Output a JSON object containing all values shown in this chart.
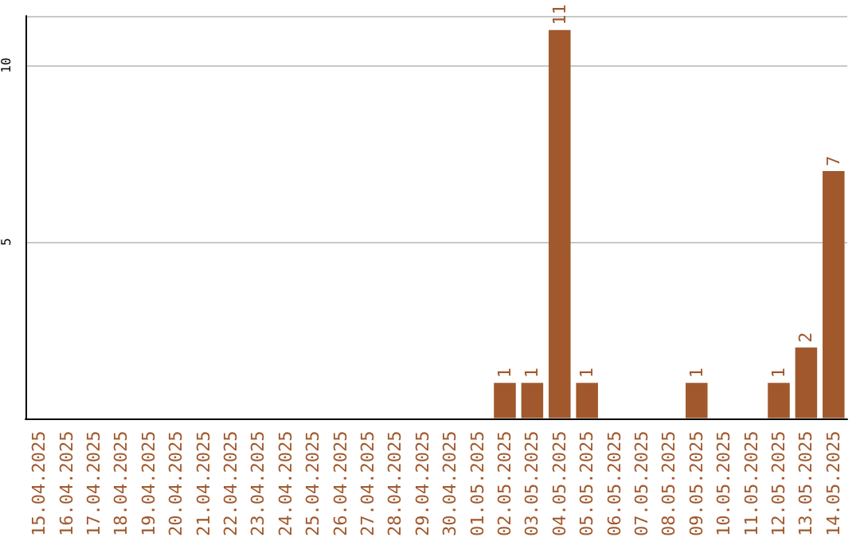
{
  "chart_data": {
    "type": "bar",
    "categories": [
      "15.04.2025",
      "16.04.2025",
      "17.04.2025",
      "18.04.2025",
      "19.04.2025",
      "20.04.2025",
      "21.04.2025",
      "22.04.2025",
      "23.04.2025",
      "24.04.2025",
      "25.04.2025",
      "26.04.2025",
      "27.04.2025",
      "28.04.2025",
      "29.04.2025",
      "30.04.2025",
      "01.05.2025",
      "02.05.2025",
      "03.05.2025",
      "04.05.2025",
      "05.05.2025",
      "06.05.2025",
      "07.05.2025",
      "08.05.2025",
      "09.05.2025",
      "10.05.2025",
      "11.05.2025",
      "12.05.2025",
      "13.05.2025",
      "14.05.2025"
    ],
    "values": [
      0,
      0,
      0,
      0,
      0,
      0,
      0,
      0,
      0,
      0,
      0,
      0,
      0,
      0,
      0,
      0,
      0,
      1,
      1,
      11,
      1,
      0,
      0,
      0,
      1,
      0,
      0,
      1,
      2,
      7
    ],
    "value_labels": [
      null,
      null,
      null,
      null,
      null,
      null,
      null,
      null,
      null,
      null,
      null,
      null,
      null,
      null,
      null,
      null,
      null,
      "1",
      "1",
      "11",
      "1",
      null,
      null,
      null,
      "1",
      null,
      null,
      "1",
      "2",
      "7"
    ],
    "color": "#a0582c",
    "ylim": [
      0,
      11.4
    ],
    "yticks": [
      5,
      10
    ],
    "grid": "y"
  }
}
